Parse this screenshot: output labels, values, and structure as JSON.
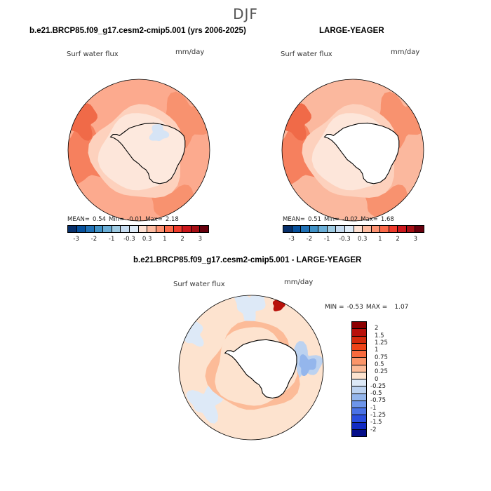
{
  "season": "DJF",
  "panels": [
    {
      "title": "b.e21.BRCP85.f09_g17.cesm2-cmip5.001 (yrs 2006-2025)",
      "variable": "Surf water flux",
      "units": "mm/day",
      "stats": {
        "mean_label": "MEAN=",
        "mean": "0.54",
        "min_label": "Min=",
        "min": "-0.01",
        "max_label": "Max=",
        "max": "2.18"
      },
      "colorbar_ticks": [
        "-3",
        "-2",
        "-1",
        "-0.3",
        "0.3",
        "1",
        "2",
        "3"
      ]
    },
    {
      "title": "LARGE-YEAGER",
      "variable": "Surf water flux",
      "units": "mm/day",
      "stats": {
        "mean_label": "MEAN=",
        "mean": "0.51",
        "min_label": "Min=",
        "min": "-0.02",
        "max_label": "Max=",
        "max": "1.68"
      },
      "colorbar_ticks": [
        "-3",
        "-2",
        "-1",
        "-0.3",
        "0.3",
        "1",
        "2",
        "3"
      ]
    },
    {
      "title": "b.e21.BRCP85.f09_g17.cesm2-cmip5.001 - LARGE-YEAGER",
      "variable": "Surf water flux",
      "units": "mm/day",
      "stats": {
        "min_label": "MIN =",
        "min": "-0.53",
        "max_label": "MAX =",
        "max": "1.07"
      },
      "colorbar_ticks": [
        "2",
        "1.5",
        "1.25",
        "1",
        "0.75",
        "0.5",
        "0.25",
        "0",
        "-0.25",
        "-0.5",
        "-0.75",
        "-1",
        "-1.25",
        "-1.5",
        "-2"
      ]
    }
  ],
  "colors": {
    "abs_scale": [
      "#08306b",
      "#08519c",
      "#2171b5",
      "#4292c6",
      "#6baed6",
      "#9ecae1",
      "#c6dbef",
      "#deebf7",
      "#fde0d2",
      "#fcbba1",
      "#fc9272",
      "#fb6a4a",
      "#ef3b2c",
      "#cb181d",
      "#a50f15",
      "#67000d"
    ],
    "diff_scale": [
      "#8b0000",
      "#b8110a",
      "#d42a0c",
      "#ee4418",
      "#f86a3d",
      "#fb9569",
      "#fcbb98",
      "#fde3cf",
      "#dde9f7",
      "#bcd2f0",
      "#94b6ec",
      "#6d95ea",
      "#4a72e6",
      "#2a4ede",
      "#122bc2",
      "#050f8a"
    ],
    "land": "#ffffff",
    "outline": "#000000"
  },
  "chart_data": [
    {
      "type": "heatmap",
      "projection": "south-polar-stereographic",
      "title": "b.e21.BRCP85.f09_g17.cesm2-cmip5.001 (yrs 2006-2025)",
      "variable": "Surf water flux",
      "units": "mm/day",
      "levels": [
        -3,
        -2,
        -1,
        -0.3,
        0.3,
        1,
        2,
        3
      ],
      "mean": 0.54,
      "min": -0.01,
      "max": 2.18
    },
    {
      "type": "heatmap",
      "projection": "south-polar-stereographic",
      "title": "LARGE-YEAGER",
      "variable": "Surf water flux",
      "units": "mm/day",
      "levels": [
        -3,
        -2,
        -1,
        -0.3,
        0.3,
        1,
        2,
        3
      ],
      "mean": 0.51,
      "min": -0.02,
      "max": 1.68
    },
    {
      "type": "heatmap",
      "projection": "south-polar-stereographic",
      "title": "b.e21.BRCP85.f09_g17.cesm2-cmip5.001 - LARGE-YEAGER",
      "variable": "Surf water flux",
      "units": "mm/day",
      "levels": [
        -2,
        -1.5,
        -1.25,
        -1,
        -0.75,
        -0.5,
        -0.25,
        0,
        0.25,
        0.5,
        0.75,
        1,
        1.25,
        1.5,
        2
      ],
      "min": -0.53,
      "max": 1.07
    }
  ]
}
